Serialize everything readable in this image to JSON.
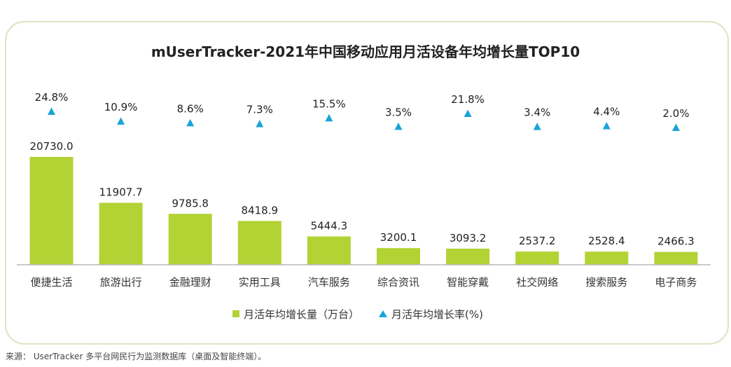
{
  "chart_data": {
    "type": "bar",
    "title": "mUserTracker-2021年中国移动应用月活设备年均增长量TOP10",
    "categories": [
      "便捷生活",
      "旅游出行",
      "金融理财",
      "实用工具",
      "汽车服务",
      "综合资讯",
      "智能穿戴",
      "社交网络",
      "搜索服务",
      "电子商务"
    ],
    "series": [
      {
        "name": "月活年均增长量（万台）",
        "type": "bar",
        "values": [
          20730.0,
          11907.7,
          9785.8,
          8418.9,
          5444.3,
          3200.1,
          3093.2,
          2537.2,
          2528.4,
          2466.3
        ],
        "labels": [
          "20730.0",
          "11907.7",
          "9785.8",
          "8418.9",
          "5444.3",
          "3200.1",
          "3093.2",
          "2537.2",
          "2528.4",
          "2466.3"
        ],
        "color": "#b3d335"
      },
      {
        "name": "月活年均增长率(%)",
        "type": "marker",
        "values": [
          24.8,
          10.9,
          8.6,
          7.3,
          15.5,
          3.5,
          21.8,
          3.4,
          4.4,
          2.0
        ],
        "labels": [
          "24.8%",
          "10.9%",
          "8.6%",
          "7.3%",
          "15.5%",
          "3.5%",
          "21.8%",
          "3.4%",
          "4.4%",
          "2.0%"
        ],
        "color": "#1aa3d8"
      }
    ],
    "legend_position": "bottom",
    "grid": false
  },
  "legend": {
    "bar_label": "月活年均增长量（万台）",
    "marker_label": "月活年均增长率(%)"
  },
  "source": "来源： UserTracker 多平台网民行为监测数据库（桌面及智能终端）。",
  "colors": {
    "bar": "#b3d335",
    "marker": "#1aa3d8",
    "frame": "#dde3c2"
  }
}
